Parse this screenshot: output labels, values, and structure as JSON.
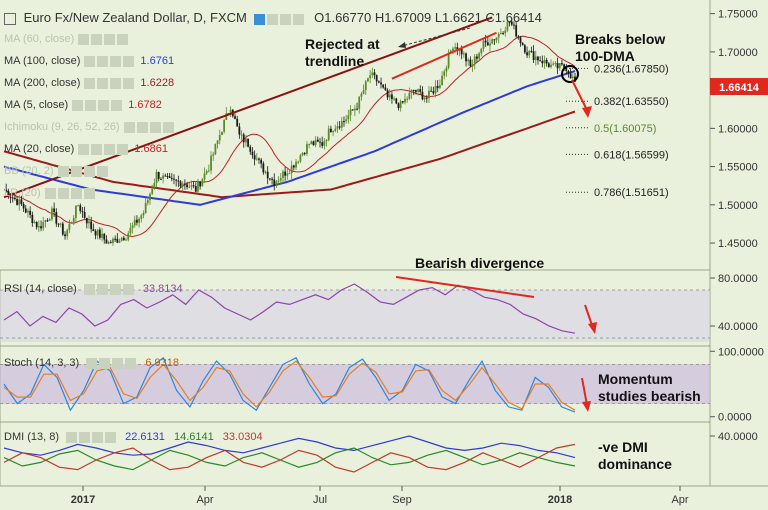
{
  "header": {
    "symbol": "Euro Fx/New Zealand Dollar, D, FXCM",
    "ohlc": "O1.66770  H1.67009  L1.6621  C1.66414"
  },
  "overlays": [
    {
      "label": "MA (60, close)",
      "value": "",
      "faded": true
    },
    {
      "label": "MA (100, close)",
      "value": "1.6761",
      "color": "#2e3bd6"
    },
    {
      "label": "MA (200, close)",
      "value": "1.6228",
      "color": "#9b1b1b"
    },
    {
      "label": "MA (5, close)",
      "value": "1.6782",
      "color": "#c32020"
    },
    {
      "label": "Ichimoku (9, 26, 52, 26)",
      "value": "",
      "faded": true
    },
    {
      "label": "MA (20, close)",
      "value": "1.6861",
      "color": "#c32020"
    },
    {
      "label": "BB (20, 2)",
      "value": "",
      "faded": true
    },
    {
      "label": "LR (20)",
      "value": "",
      "faded": true
    }
  ],
  "annotations": {
    "rejected": "Rejected at\ntrendline",
    "breaks": "Breaks below\n100-DMA",
    "divergence": "Bearish divergence",
    "momentum": "Momentum\nstudies bearish",
    "dmi": "-ve DMI\ndominance"
  },
  "fib_levels": [
    {
      "label": "0.236(1.67850)",
      "value": 1.6785,
      "color": "#222222"
    },
    {
      "label": "0.382(1.63550)",
      "value": 1.6355,
      "color": "#222222"
    },
    {
      "label": "0.5(1.60075)",
      "value": 1.60075,
      "color": "#5a8a2a"
    },
    {
      "label": "0.618(1.56599)",
      "value": 1.56599,
      "color": "#222222"
    },
    {
      "label": "0.786(1.51651)",
      "value": 1.51651,
      "color": "#222222"
    }
  ],
  "price_tag": {
    "value": "1.66414",
    "color": "#e0281e"
  },
  "colors": {
    "up": "#5a8a2a",
    "down": "#1a1a1a",
    "ma100": "#2e3bd6",
    "ma200": "#9b1b1b",
    "ma20": "#c32020",
    "rsi": "#8e44ad",
    "arrow": "#e0281e"
  },
  "chart_data": [
    {
      "type": "candlestick",
      "title": "Euro Fx/New Zealand Dollar, D, FXCM",
      "x_ticks": [
        "2017",
        "Apr",
        "Jul",
        "Sep",
        "2018",
        "Apr"
      ],
      "y_ticks": [
        "1.75000",
        "1.70000",
        "1.65000",
        "1.60000",
        "1.55000",
        "1.50000",
        "1.45000"
      ],
      "ylim": [
        1.42,
        1.76
      ],
      "close_path": [
        [
          0,
          1.52
        ],
        [
          8,
          1.5
        ],
        [
          16,
          1.47
        ],
        [
          22,
          1.49
        ],
        [
          28,
          1.46
        ],
        [
          34,
          1.5
        ],
        [
          40,
          1.47
        ],
        [
          48,
          1.45
        ],
        [
          56,
          1.46
        ],
        [
          64,
          1.49
        ],
        [
          70,
          1.54
        ],
        [
          76,
          1.53
        ],
        [
          82,
          1.53
        ],
        [
          88,
          1.52
        ],
        [
          94,
          1.55
        ],
        [
          100,
          1.6
        ],
        [
          104,
          1.63
        ],
        [
          108,
          1.59
        ],
        [
          112,
          1.58
        ],
        [
          118,
          1.55
        ],
        [
          124,
          1.53
        ],
        [
          132,
          1.55
        ],
        [
          140,
          1.58
        ],
        [
          146,
          1.58
        ],
        [
          150,
          1.6
        ],
        [
          156,
          1.61
        ],
        [
          162,
          1.63
        ],
        [
          168,
          1.67
        ],
        [
          172,
          1.66
        ],
        [
          176,
          1.64
        ],
        [
          182,
          1.63
        ],
        [
          188,
          1.65
        ],
        [
          194,
          1.64
        ],
        [
          200,
          1.66
        ],
        [
          206,
          1.71
        ],
        [
          210,
          1.7
        ],
        [
          214,
          1.68
        ],
        [
          220,
          1.71
        ],
        [
          226,
          1.72
        ],
        [
          232,
          1.74
        ],
        [
          236,
          1.72
        ],
        [
          240,
          1.7
        ],
        [
          246,
          1.69
        ],
        [
          252,
          1.68
        ],
        [
          258,
          1.68
        ],
        [
          262,
          1.66
        ]
      ],
      "ma100": [
        [
          0,
          1.55
        ],
        [
          40,
          1.52
        ],
        [
          90,
          1.5
        ],
        [
          130,
          1.53
        ],
        [
          170,
          1.57
        ],
        [
          210,
          1.62
        ],
        [
          240,
          1.655
        ],
        [
          262,
          1.675
        ]
      ],
      "ma200": [
        [
          0,
          1.57
        ],
        [
          50,
          1.53
        ],
        [
          100,
          1.51
        ],
        [
          150,
          1.52
        ],
        [
          200,
          1.56
        ],
        [
          240,
          1.6
        ],
        [
          262,
          1.622
        ]
      ],
      "trendlines": [
        [
          [
            0,
            1.51
          ],
          [
            224,
            1.745
          ]
        ],
        [
          [
            178,
            1.665
          ],
          [
            226,
            1.725
          ]
        ]
      ]
    },
    {
      "type": "line",
      "title": "RSI (14, close)",
      "value_label": "33.8134",
      "y_ticks": [
        "80.0000",
        "40.0000"
      ],
      "ylim": [
        25,
        85
      ],
      "levels": [
        70,
        30
      ],
      "values": [
        45,
        52,
        40,
        48,
        43,
        55,
        50,
        40,
        45,
        58,
        62,
        55,
        60,
        66,
        58,
        70,
        64,
        55,
        50,
        45,
        52,
        60,
        58,
        62,
        66,
        62,
        70,
        75,
        68,
        60,
        58,
        64,
        70,
        72,
        66,
        74,
        70,
        64,
        62,
        58,
        50,
        46,
        40,
        36,
        34
      ]
    },
    {
      "type": "line",
      "title": "Stoch (14, 3, 3)",
      "value_label": "6.9318",
      "y_ticks": [
        "100.0000",
        "0.0000"
      ],
      "ylim": [
        -5,
        105
      ],
      "levels": [
        80,
        20
      ],
      "series": [
        {
          "name": "%K",
          "values": [
            50,
            20,
            35,
            80,
            60,
            10,
            40,
            85,
            70,
            20,
            30,
            75,
            90,
            40,
            15,
            55,
            85,
            65,
            25,
            10,
            45,
            80,
            90,
            50,
            20,
            35,
            75,
            88,
            60,
            25,
            40,
            80,
            70,
            30,
            20,
            55,
            85,
            40,
            15,
            10,
            60,
            45,
            15,
            7
          ]
        },
        {
          "name": "%D",
          "values": [
            45,
            30,
            30,
            65,
            65,
            25,
            35,
            70,
            75,
            35,
            28,
            60,
            80,
            55,
            25,
            45,
            75,
            70,
            35,
            15,
            38,
            70,
            85,
            60,
            30,
            32,
            65,
            82,
            68,
            35,
            38,
            70,
            72,
            40,
            25,
            48,
            75,
            50,
            22,
            12,
            50,
            50,
            22,
            10
          ]
        }
      ]
    },
    {
      "type": "line",
      "title": "DMI (13, 8)",
      "value_labels": [
        "22.6131",
        "14.6141",
        "33.0304"
      ],
      "y_ticks": [
        "40.0000"
      ],
      "ylim": [
        0,
        50
      ],
      "series": [
        {
          "name": "ADX",
          "values": [
            30,
            26,
            24,
            28,
            33,
            30,
            26,
            24,
            25,
            30,
            35,
            32,
            28,
            26,
            30,
            34,
            38,
            35,
            30,
            28,
            32,
            36,
            40,
            35,
            30,
            28,
            30,
            34,
            32,
            28,
            26,
            22
          ]
        },
        {
          "name": "+DI",
          "values": [
            22,
            15,
            18,
            25,
            28,
            20,
            15,
            12,
            20,
            28,
            24,
            18,
            15,
            22,
            26,
            20,
            14,
            18,
            26,
            30,
            22,
            16,
            18,
            24,
            28,
            22,
            16,
            20,
            26,
            22,
            18,
            15
          ]
        },
        {
          "name": "-DI",
          "values": [
            18,
            26,
            22,
            14,
            12,
            20,
            26,
            30,
            20,
            12,
            14,
            22,
            28,
            18,
            14,
            20,
            28,
            24,
            14,
            10,
            18,
            26,
            22,
            14,
            12,
            18,
            26,
            20,
            14,
            22,
            30,
            33
          ]
        }
      ]
    }
  ]
}
